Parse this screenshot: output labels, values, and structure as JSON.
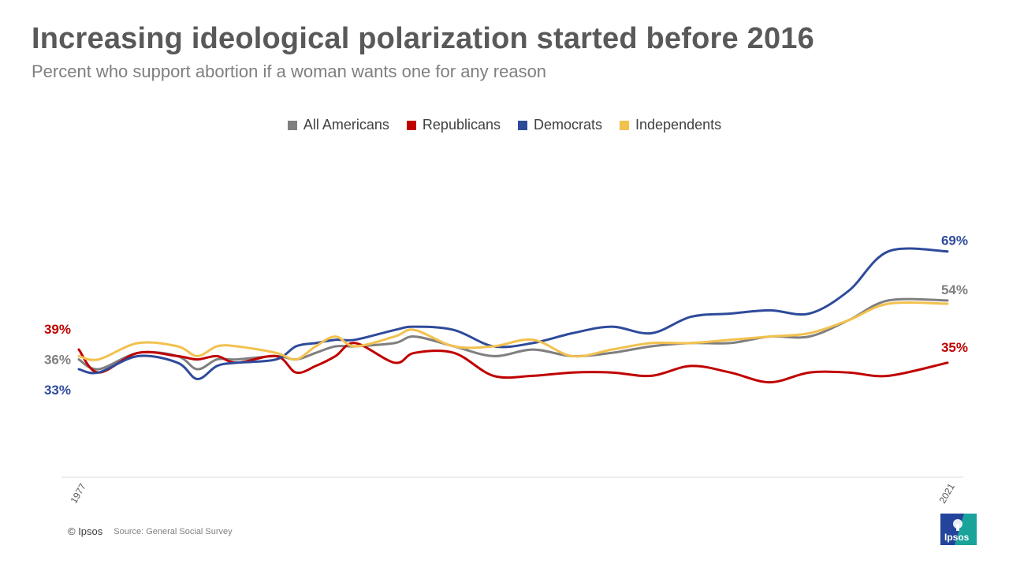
{
  "header": {
    "title": "Increasing ideological polarization started before 2016",
    "subtitle": "Percent who support abortion if a woman wants one for any reason"
  },
  "legend": [
    {
      "label": "All Americans",
      "color": "#7f7f7f"
    },
    {
      "label": "Republicans",
      "color": "#c00000"
    },
    {
      "label": "Democrats",
      "color": "#2e4a9b"
    },
    {
      "label": "Independents",
      "color": "#f2c14e"
    }
  ],
  "footer": {
    "copyright": "© Ipsos",
    "source": "Source: General Social Survey",
    "logo_text": "Ipsos"
  },
  "chart_data": {
    "type": "line",
    "title": "Increasing ideological polarization started before 2016",
    "subtitle": "Percent who support abortion if a woman wants one for any reason",
    "xlabel": "",
    "ylabel": "",
    "x_tick_labels": [
      "1977",
      "2021"
    ],
    "x": [
      1977,
      1978,
      1980,
      1982,
      1983,
      1984,
      1985,
      1987,
      1988,
      1989,
      1990,
      1991,
      1993,
      1994,
      1996,
      1998,
      2000,
      2002,
      2004,
      2006,
      2008,
      2010,
      2012,
      2014,
      2016,
      2018,
      2021
    ],
    "ylim": [
      0,
      100
    ],
    "grid": false,
    "series": [
      {
        "name": "All Americans",
        "color": "#7f7f7f",
        "end_label": "54%",
        "start_label": "36%",
        "values": [
          36,
          33,
          38,
          37,
          33,
          36,
          36,
          37,
          36,
          38,
          40,
          40,
          41,
          43,
          40,
          37,
          39,
          37,
          38,
          40,
          41,
          41,
          43,
          43,
          48,
          54,
          54
        ]
      },
      {
        "name": "Republicans",
        "color": "#c00000",
        "end_label": "35%",
        "start_label": "39%",
        "values": [
          39,
          32,
          38,
          37,
          36,
          37,
          35,
          37,
          32,
          34,
          37,
          41,
          35,
          38,
          38,
          31,
          31,
          32,
          32,
          31,
          34,
          32,
          29,
          32,
          32,
          31,
          35
        ]
      },
      {
        "name": "Democrats",
        "color": "#2e4a9b",
        "end_label": "69%",
        "start_label": "33%",
        "values": [
          33,
          32,
          37,
          35,
          30,
          34,
          35,
          36,
          40,
          41,
          42,
          42,
          45,
          46,
          45,
          40,
          41,
          44,
          46,
          44,
          49,
          50,
          51,
          50,
          57,
          69,
          69
        ]
      },
      {
        "name": "Independents",
        "color": "#f2c14e",
        "end_label": "",
        "start_label": "",
        "values": [
          37,
          36,
          41,
          40,
          37,
          40,
          40,
          38,
          36,
          40,
          43,
          40,
          43,
          45,
          40,
          40,
          42,
          37,
          39,
          41,
          41,
          42,
          43,
          44,
          48,
          53,
          53
        ]
      }
    ]
  }
}
